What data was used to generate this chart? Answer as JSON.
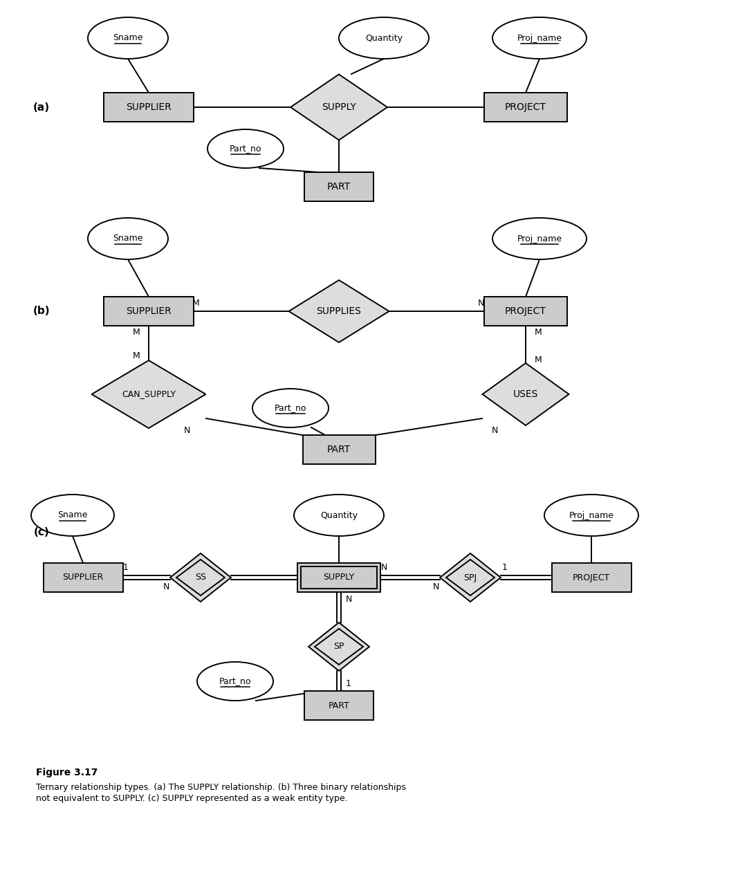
{
  "bg_color": "#ffffff",
  "entity_fill": "#cccccc",
  "entity_edge": "#000000",
  "relation_fill": "#dddddd",
  "attr_fill": "#ffffff",
  "fs_entity": 10,
  "fs_attr": 9,
  "fs_section": 11,
  "fs_mult": 9,
  "fs_cap_title": 10,
  "fs_cap_body": 9,
  "caption_title": "Figure 3.17",
  "caption_line1": "Ternary relationship types. (a) The SUPPLY relationship. (b) Three binary relationships",
  "caption_line2": "not equivalent to SUPPLY. (c) SUPPLY represented as a weak entity type.",
  "lw": 1.4,
  "ul_lw": 1.1
}
